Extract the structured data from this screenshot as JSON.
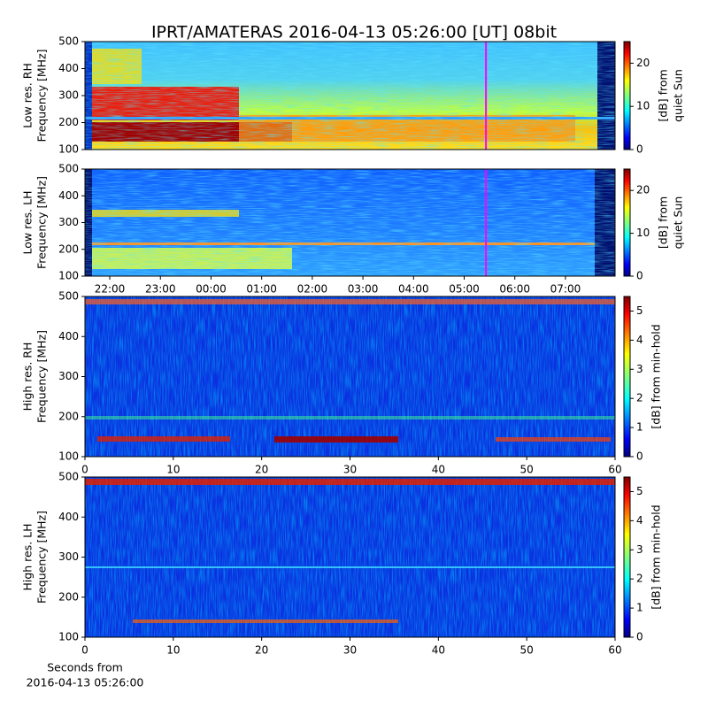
{
  "chart_data": [
    {
      "type": "heatmap",
      "title": "IPRT/AMATERAS 2016-04-13 05:26:00 [UT]   08bit",
      "ylabel": [
        "Low res. RH",
        "Frequency [MHz]"
      ],
      "ylim": [
        100,
        500
      ],
      "yticks": [
        100,
        200,
        300,
        400,
        500
      ],
      "xlim": [
        21.51,
        31.98
      ],
      "marker_x": 29.43,
      "marker_color": "#ff00ff",
      "colorbar_label": [
        "[dB] from",
        "quiet Sun"
      ],
      "clim": [
        0,
        25
      ],
      "cticks": [
        0,
        10,
        20
      ],
      "colormap": "jet"
    },
    {
      "type": "heatmap",
      "ylabel": [
        "Low res. LH",
        "Frequency [MHz]"
      ],
      "ylim": [
        100,
        500
      ],
      "yticks": [
        100,
        200,
        300,
        400,
        500
      ],
      "xlim": [
        21.51,
        31.98
      ],
      "xticks": [
        {
          "value": 22,
          "label": "22:00"
        },
        {
          "value": 23,
          "label": "23:00"
        },
        {
          "value": 24,
          "label": "00:00"
        },
        {
          "value": 25,
          "label": "01:00"
        },
        {
          "value": 26,
          "label": "02:00"
        },
        {
          "value": 27,
          "label": "03:00"
        },
        {
          "value": 28,
          "label": "04:00"
        },
        {
          "value": 29,
          "label": "05:00"
        },
        {
          "value": 30,
          "label": "06:00"
        },
        {
          "value": 31,
          "label": "07:00"
        }
      ],
      "marker_x": 29.43,
      "marker_color": "#ff00ff",
      "colorbar_label": [
        "[dB] from",
        "quiet Sun"
      ],
      "clim": [
        0,
        25
      ],
      "cticks": [
        0,
        10,
        20
      ],
      "colormap": "jet"
    },
    {
      "type": "heatmap",
      "ylabel": [
        "High res. RH",
        "Frequency [MHz]"
      ],
      "ylim": [
        100,
        500
      ],
      "yticks": [
        100,
        200,
        300,
        400,
        500
      ],
      "xlim": [
        0,
        60
      ],
      "xticks": [
        0,
        10,
        20,
        30,
        40,
        50,
        60
      ],
      "colorbar_label": [
        "[dB] from min-hold"
      ],
      "clim": [
        0,
        5.5
      ],
      "cticks": [
        0,
        1,
        2,
        3,
        4,
        5
      ],
      "colormap": "jet"
    },
    {
      "type": "heatmap",
      "ylabel": [
        "High res. LH",
        "Frequency [MHz]"
      ],
      "ylim": [
        100,
        500
      ],
      "yticks": [
        100,
        200,
        300,
        400,
        500
      ],
      "xlim": [
        0,
        60
      ],
      "xticks": [
        0,
        10,
        20,
        30,
        40,
        50,
        60
      ],
      "xlabel": [
        "Seconds from",
        "2016-04-13 05:26:00"
      ],
      "colorbar_label": [
        "[dB] from min-hold"
      ],
      "clim": [
        0,
        5.5
      ],
      "cticks": [
        0,
        1,
        2,
        3,
        4,
        5
      ],
      "colormap": "jet"
    }
  ]
}
